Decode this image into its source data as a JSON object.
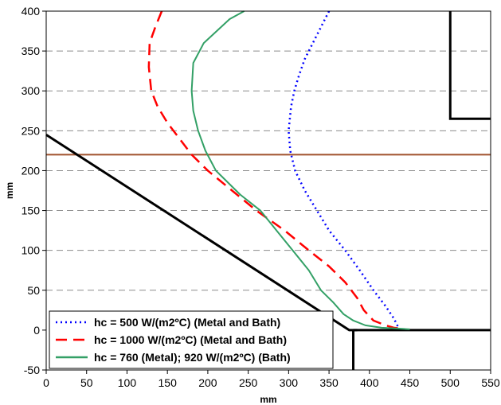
{
  "chart_data": {
    "type": "line",
    "xlabel": "mm",
    "ylabel": "mm",
    "xlim": [
      0,
      550
    ],
    "ylim": [
      -50,
      400
    ],
    "xticks": [
      0,
      50,
      100,
      150,
      200,
      250,
      300,
      350,
      400,
      450,
      500,
      550
    ],
    "yticks": [
      -50,
      0,
      50,
      100,
      150,
      200,
      250,
      300,
      350,
      400
    ],
    "grid": "horizontal dashed",
    "legend_position": "bottom-left",
    "series": [
      {
        "name": "hc = 500 W/(m2ºC) (Metal and Bath)",
        "color": "#0000ff",
        "style": "dotted",
        "x": [
          350,
          340,
          330,
          320,
          313,
          307,
          303,
          300,
          302,
          308,
          320,
          335,
          350,
          370,
          388,
          405,
          420,
          430,
          435
        ],
        "y": [
          400,
          380,
          360,
          340,
          320,
          300,
          280,
          250,
          225,
          200,
          175,
          150,
          125,
          100,
          75,
          50,
          30,
          15,
          5
        ]
      },
      {
        "name": "hc = 1000 W/(m2ºC) (Metal and Bath)",
        "color": "#ff0000",
        "style": "dashed",
        "x": [
          143,
          135,
          128,
          127,
          130,
          138,
          150,
          165,
          180,
          200,
          230,
          260,
          295,
          325,
          350,
          370,
          385,
          393,
          405,
          420,
          430,
          438
        ],
        "y": [
          400,
          380,
          360,
          330,
          300,
          280,
          260,
          240,
          220,
          200,
          175,
          150,
          125,
          100,
          80,
          60,
          40,
          25,
          12,
          6,
          3,
          2
        ]
      },
      {
        "name": "hc = 760 (Metal); 920 W/(m2ºC) (Bath)",
        "color": "#33a066",
        "style": "solid",
        "x": [
          245,
          227,
          195,
          182,
          180,
          182,
          188,
          197,
          210,
          225,
          240,
          265,
          285,
          305,
          325,
          340,
          355,
          368,
          380,
          395,
          415,
          435,
          450
        ],
        "y": [
          400,
          390,
          360,
          335,
          300,
          275,
          250,
          225,
          200,
          185,
          170,
          150,
          125,
          100,
          75,
          50,
          35,
          20,
          12,
          6,
          3,
          2,
          1
        ]
      }
    ],
    "reference_lines": [
      {
        "type": "horizontal",
        "y": 220,
        "color": "#a0522d"
      },
      {
        "type": "polyline",
        "color": "#000000",
        "x": [
          0,
          375,
          385
        ],
        "y": [
          245,
          0,
          0
        ]
      },
      {
        "type": "polyline",
        "color": "#000000",
        "x": [
          380,
          380
        ],
        "y": [
          0,
          -50
        ]
      },
      {
        "type": "polyline",
        "color": "#000000",
        "x": [
          380,
          550
        ],
        "y": [
          0,
          0
        ]
      },
      {
        "type": "polyline",
        "color": "#000000",
        "x": [
          500,
          500,
          550
        ],
        "y": [
          400,
          265,
          265
        ]
      }
    ]
  }
}
